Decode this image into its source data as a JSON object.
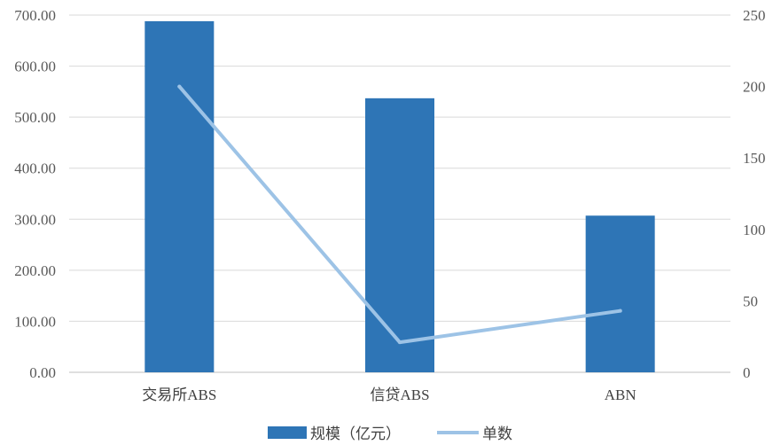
{
  "chart_data": {
    "type": "bar",
    "categories": [
      "交易所ABS",
      "信贷ABS",
      "ABN"
    ],
    "series": [
      {
        "name": "规模（亿元）",
        "type": "bar",
        "axis": "left",
        "values": [
          688,
          537,
          307
        ],
        "color": "#2E75B6"
      },
      {
        "name": "单数",
        "type": "line",
        "axis": "right",
        "values": [
          200,
          21,
          43
        ],
        "color": "#9DC3E6"
      }
    ],
    "y_left": {
      "range": [
        0,
        700
      ],
      "tick_labels": [
        "0.00",
        "100.00",
        "200.00",
        "300.00",
        "400.00",
        "500.00",
        "600.00",
        "700.00"
      ]
    },
    "y_right": {
      "range": [
        0,
        250
      ],
      "tick_labels": [
        "0",
        "50",
        "100",
        "150",
        "200",
        "250"
      ]
    },
    "grid": true,
    "legend": "bottom-center",
    "colors": {
      "grid": "#D9D9D9",
      "axis": "#BFBFBF"
    }
  }
}
